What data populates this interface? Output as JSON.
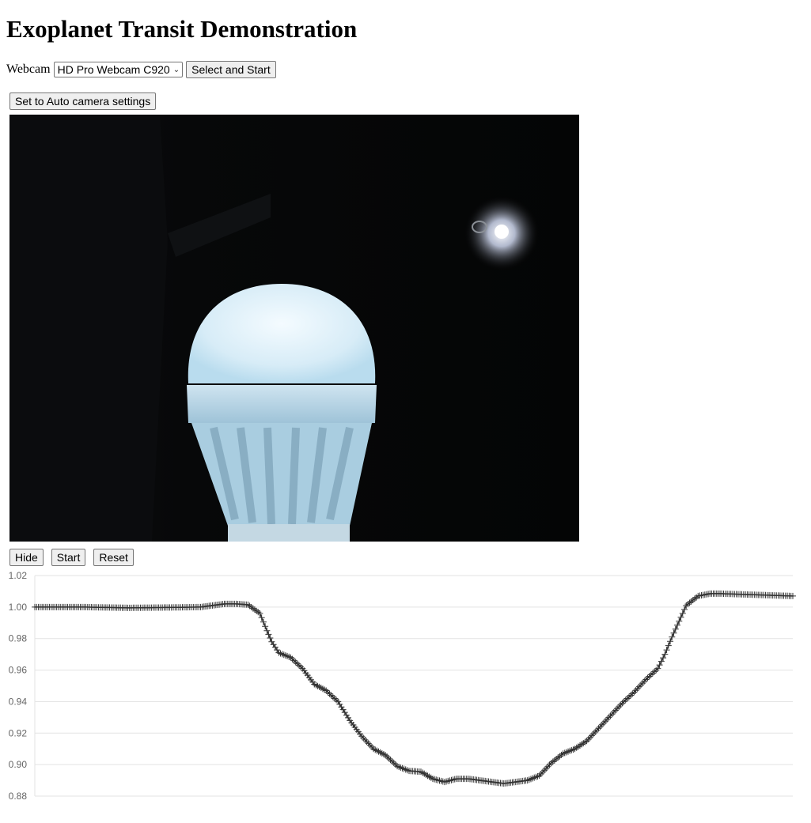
{
  "page": {
    "title": "Exoplanet Transit Demonstration"
  },
  "webcam": {
    "label": "Webcam",
    "selected": "HD Pro Webcam C920",
    "start_button": "Select and Start"
  },
  "camera": {
    "auto_button": "Set to Auto camera settings"
  },
  "controls": {
    "hide": "Hide",
    "start": "Start",
    "reset": "Reset"
  },
  "chart_data": {
    "type": "scatter",
    "title": "",
    "xlabel": "",
    "ylabel": "",
    "ylim": [
      0.88,
      1.02
    ],
    "y_ticks": [
      "1.02",
      "1.00",
      "0.98",
      "0.96",
      "0.94",
      "0.92",
      "0.90",
      "0.88"
    ],
    "y_tick_values": [
      1.02,
      1.0,
      0.98,
      0.96,
      0.94,
      0.92,
      0.9,
      0.88
    ],
    "grid": true,
    "marker": "plus",
    "color": "#333333",
    "x_range": [
      0,
      320
    ],
    "points_xy": [
      [
        0,
        1.0
      ],
      [
        20,
        1.0
      ],
      [
        40,
        0.9995
      ],
      [
        60,
        0.9998
      ],
      [
        70,
        1.0
      ],
      [
        75,
        1.001
      ],
      [
        80,
        1.002
      ],
      [
        85,
        1.002
      ],
      [
        90,
        1.0015
      ],
      [
        95,
        0.996
      ],
      [
        98,
        0.985
      ],
      [
        100,
        0.978
      ],
      [
        103,
        0.971
      ],
      [
        108,
        0.968
      ],
      [
        113,
        0.961
      ],
      [
        118,
        0.951
      ],
      [
        123,
        0.947
      ],
      [
        128,
        0.94
      ],
      [
        133,
        0.928
      ],
      [
        138,
        0.918
      ],
      [
        143,
        0.91
      ],
      [
        148,
        0.906
      ],
      [
        153,
        0.899
      ],
      [
        158,
        0.896
      ],
      [
        163,
        0.8955
      ],
      [
        168,
        0.891
      ],
      [
        173,
        0.889
      ],
      [
        178,
        0.891
      ],
      [
        183,
        0.891
      ],
      [
        188,
        0.89
      ],
      [
        193,
        0.889
      ],
      [
        198,
        0.888
      ],
      [
        203,
        0.889
      ],
      [
        208,
        0.89
      ],
      [
        213,
        0.893
      ],
      [
        218,
        0.901
      ],
      [
        223,
        0.907
      ],
      [
        228,
        0.91
      ],
      [
        233,
        0.915
      ],
      [
        238,
        0.923
      ],
      [
        243,
        0.931
      ],
      [
        248,
        0.939
      ],
      [
        253,
        0.946
      ],
      [
        258,
        0.954
      ],
      [
        263,
        0.961
      ],
      [
        266,
        0.97
      ],
      [
        269,
        0.981
      ],
      [
        272,
        0.991
      ],
      [
        275,
        1.001
      ],
      [
        280,
        1.007
      ],
      [
        285,
        1.0085
      ],
      [
        290,
        1.0085
      ],
      [
        300,
        1.008
      ],
      [
        310,
        1.0075
      ],
      [
        320,
        1.007
      ]
    ]
  }
}
